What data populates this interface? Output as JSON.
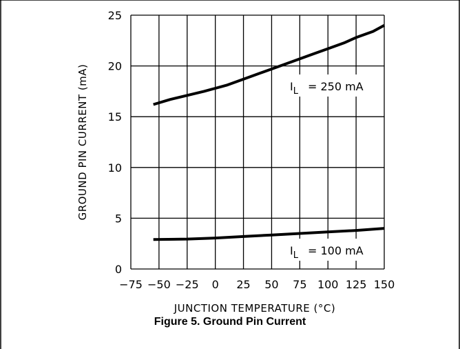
{
  "chart_data": {
    "type": "line",
    "title": "Figure 5. Ground Pin Current",
    "xlabel": "JUNCTION TEMPERATURE (°C)",
    "ylabel": "GROUND PIN CURRENT (mA)",
    "xlim": [
      -75,
      150
    ],
    "ylim": [
      0,
      25
    ],
    "x_ticks": [
      -75,
      -50,
      -25,
      0,
      25,
      50,
      75,
      100,
      125,
      150
    ],
    "x_tick_labels": [
      "−75",
      "−50",
      "−25",
      "0",
      "25",
      "50",
      "75",
      "100",
      "125",
      "150"
    ],
    "y_ticks": [
      0,
      5,
      10,
      15,
      20,
      25
    ],
    "grid": true,
    "series": [
      {
        "name": "I_L = 250 mA",
        "label_main": "I",
        "label_sub": "L",
        "label_rest": "= 250 mA",
        "x": [
          -55,
          -40,
          -25,
          -10,
          0,
          10,
          25,
          40,
          55,
          70,
          85,
          100,
          115,
          125,
          140,
          150
        ],
        "values": [
          16.2,
          16.7,
          17.1,
          17.5,
          17.8,
          18.1,
          18.7,
          19.3,
          19.9,
          20.5,
          21.1,
          21.7,
          22.3,
          22.8,
          23.4,
          24.0
        ]
      },
      {
        "name": "I_L = 100 mA",
        "label_main": "I",
        "label_sub": "L",
        "label_rest": "= 100 mA",
        "x": [
          -55,
          -25,
          0,
          25,
          50,
          75,
          100,
          125,
          150
        ],
        "values": [
          2.9,
          2.95,
          3.05,
          3.2,
          3.35,
          3.5,
          3.65,
          3.8,
          4.0
        ]
      }
    ]
  }
}
